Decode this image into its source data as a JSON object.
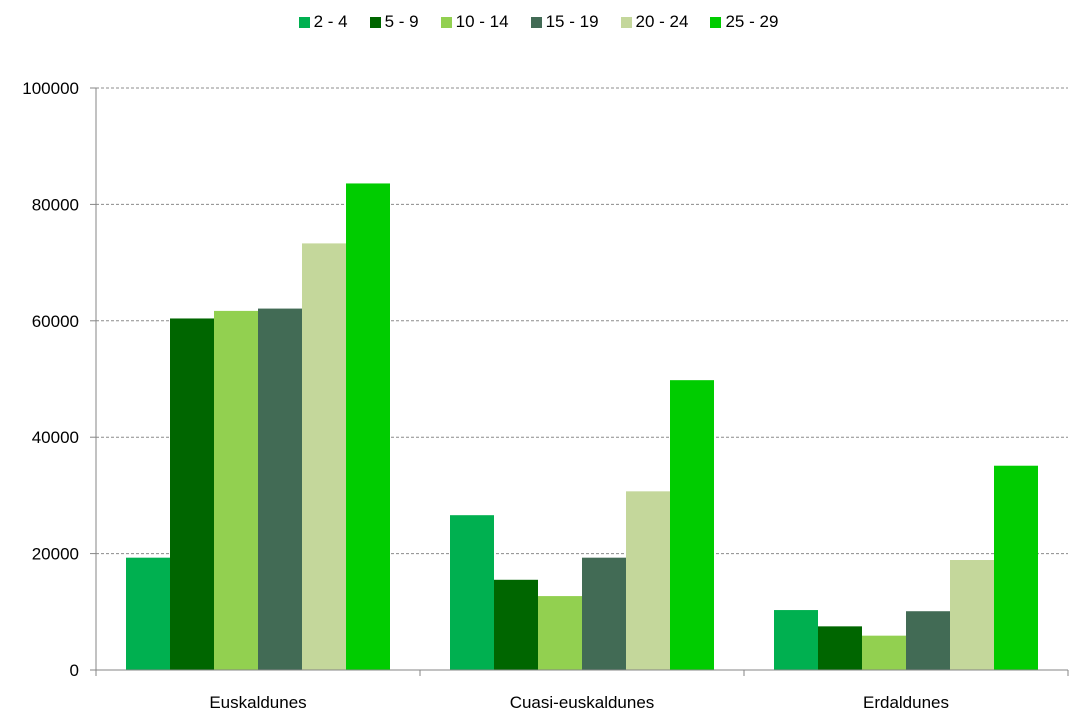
{
  "chart_data": {
    "type": "bar",
    "categories": [
      "Euskaldunes",
      "Cuasi-euskaldunes",
      "Erdaldunes"
    ],
    "series": [
      {
        "name": "2 - 4",
        "color": "#00b050",
        "values": [
          19300,
          26600,
          10300
        ]
      },
      {
        "name": "5 - 9",
        "color": "#006600",
        "values": [
          60400,
          15500,
          7500
        ]
      },
      {
        "name": "10 - 14",
        "color": "#92d050",
        "values": [
          61700,
          12700,
          5900
        ]
      },
      {
        "name": "15 - 19",
        "color": "#426b55",
        "values": [
          62100,
          19300,
          10100
        ]
      },
      {
        "name": "20 - 24",
        "color": "#c4d79b",
        "values": [
          73300,
          30700,
          18900
        ]
      },
      {
        "name": "25 - 29",
        "color": "#00cc00",
        "values": [
          83600,
          49800,
          35100
        ]
      }
    ],
    "ylim": [
      0,
      100000
    ],
    "yticks": [
      "0",
      "20000",
      "40000",
      "60000",
      "80000",
      "100000"
    ],
    "grid": true,
    "legend_position": "top"
  }
}
